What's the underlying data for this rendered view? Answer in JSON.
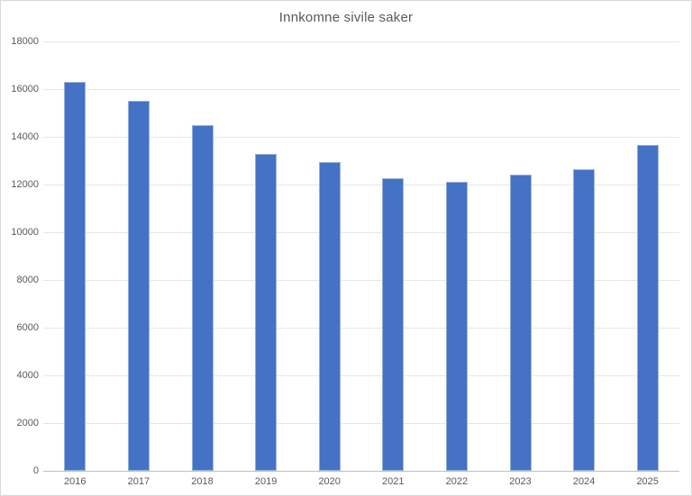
{
  "chart": {
    "colors": {
      "bar_fill": "#4472C4",
      "gridline": "#E6E6E6",
      "axis_line": "#BFBFBF",
      "chart_border": "#D9D9D9",
      "text": "#595959",
      "background": "#FFFFFF"
    }
  },
  "chart_data": {
    "type": "bar",
    "title": "Innkomne sivile saker",
    "categories": [
      "2016",
      "2017",
      "2018",
      "2019",
      "2020",
      "2021",
      "2022",
      "2023",
      "2024",
      "2025"
    ],
    "values": [
      16300,
      15500,
      14500,
      13300,
      12950,
      12250,
      12100,
      12400,
      12650,
      13650
    ],
    "yticks": [
      0,
      2000,
      4000,
      6000,
      8000,
      10000,
      12000,
      14000,
      16000,
      18000
    ],
    "ytick_labels": [
      "0",
      "2000",
      "4000",
      "6000",
      "8000",
      "10000",
      "12000",
      "14000",
      "16000",
      "18000"
    ],
    "xlabel": "",
    "ylabel": "",
    "ylim": [
      0,
      18000
    ],
    "grid": true,
    "legend": false,
    "legend_position": "none"
  }
}
